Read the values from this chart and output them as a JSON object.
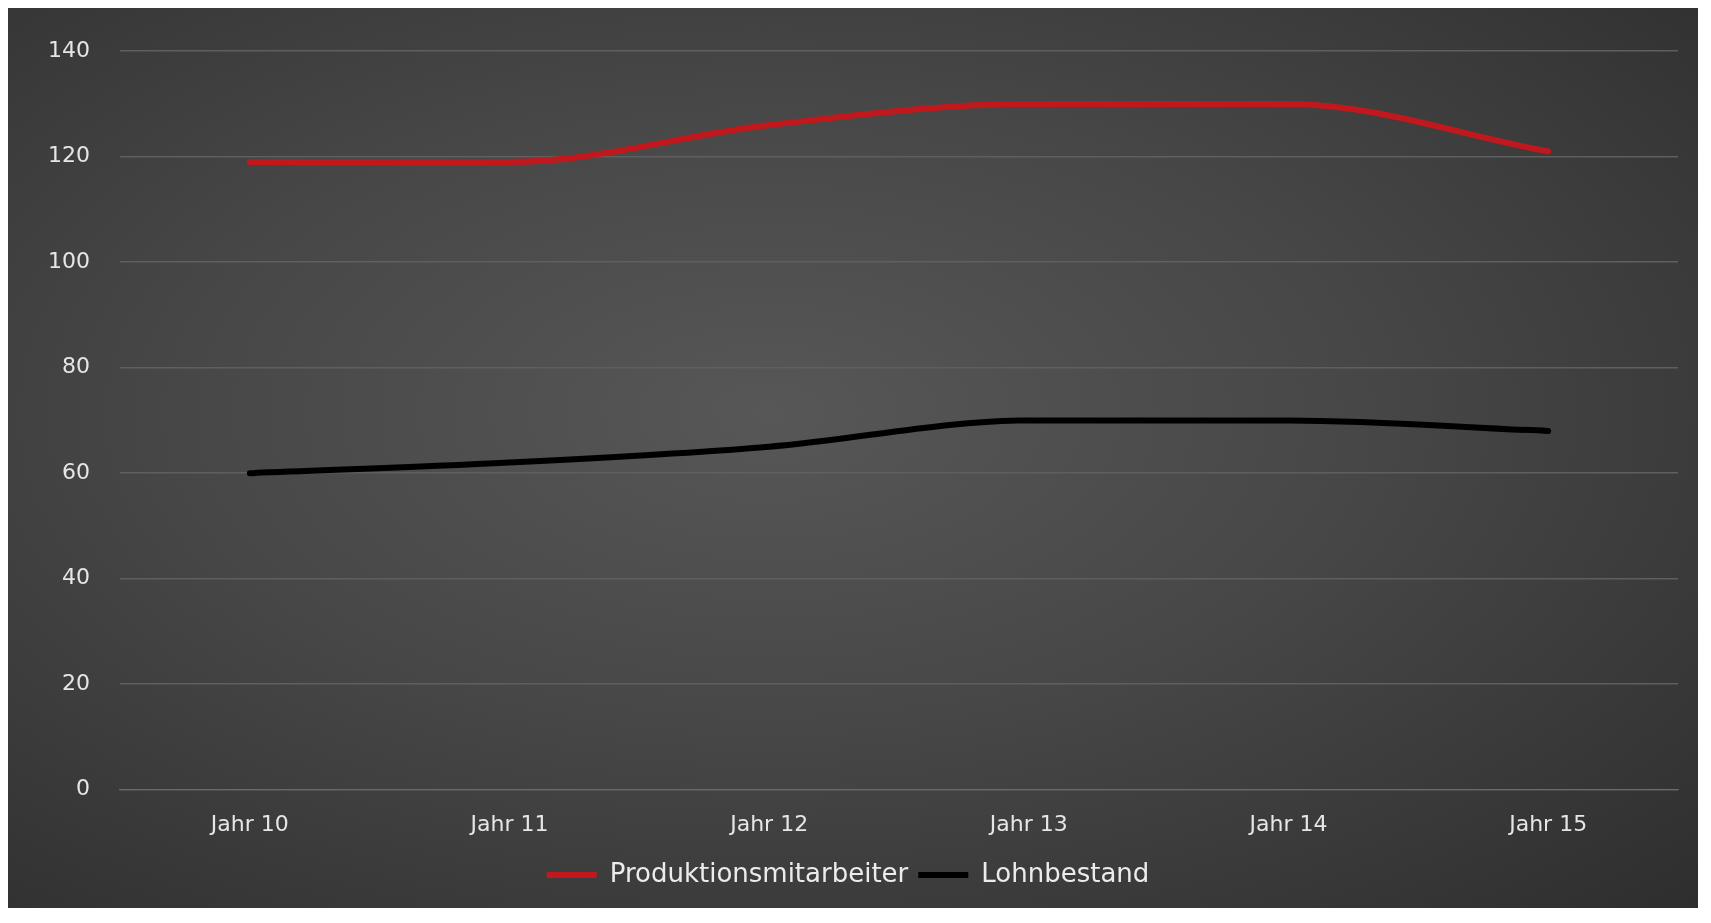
{
  "chart_data": {
    "type": "line",
    "categories": [
      "Jahr 10",
      "Jahr 11",
      "Jahr 12",
      "Jahr 13",
      "Jahr 14",
      "Jahr 15"
    ],
    "series": [
      {
        "name": "Produktionsmitarbeiter",
        "color": "#c0181c",
        "values": [
          119,
          119,
          126,
          130,
          130,
          121
        ]
      },
      {
        "name": "Lohnbestand",
        "color": "#000000",
        "values": [
          60,
          62,
          65,
          70,
          70,
          68
        ]
      }
    ],
    "ylim": [
      0,
      140
    ],
    "yticks": [
      0,
      20,
      40,
      60,
      80,
      100,
      120,
      140
    ],
    "grid": "y",
    "legend": "bottom",
    "marker": "none",
    "line_style": "solid"
  }
}
